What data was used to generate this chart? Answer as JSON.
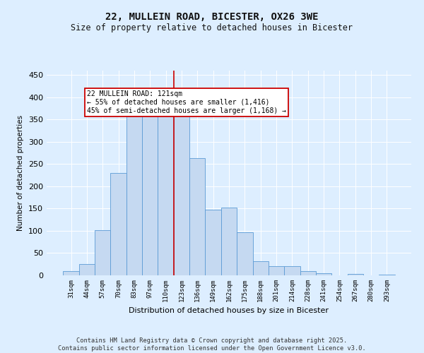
{
  "title": "22, MULLEIN ROAD, BICESTER, OX26 3WE",
  "subtitle": "Size of property relative to detached houses in Bicester",
  "xlabel": "Distribution of detached houses by size in Bicester",
  "ylabel": "Number of detached properties",
  "bar_labels": [
    "31sqm",
    "44sqm",
    "57sqm",
    "70sqm",
    "83sqm",
    "97sqm",
    "110sqm",
    "123sqm",
    "136sqm",
    "149sqm",
    "162sqm",
    "175sqm",
    "188sqm",
    "201sqm",
    "214sqm",
    "228sqm",
    "241sqm",
    "254sqm",
    "267sqm",
    "280sqm",
    "293sqm"
  ],
  "bar_values": [
    10,
    25,
    102,
    230,
    370,
    375,
    378,
    362,
    263,
    148,
    153,
    97,
    32,
    20,
    20,
    10,
    5,
    0,
    3,
    0,
    2
  ],
  "bar_color": "#c5d9f1",
  "bar_edge_color": "#5b9bd5",
  "vline_x_index": 7,
  "vline_color": "#cc0000",
  "annotation_text": "22 MULLEIN ROAD: 121sqm\n← 55% of detached houses are smaller (1,416)\n45% of semi-detached houses are larger (1,168) →",
  "annotation_box_color": "#cc0000",
  "ylim": [
    0,
    460
  ],
  "yticks": [
    0,
    50,
    100,
    150,
    200,
    250,
    300,
    350,
    400,
    450
  ],
  "footer_line1": "Contains HM Land Registry data © Crown copyright and database right 2025.",
  "footer_line2": "Contains public sector information licensed under the Open Government Licence v3.0.",
  "bg_color": "#ddeeff",
  "plot_bg_color": "#ddeeff"
}
